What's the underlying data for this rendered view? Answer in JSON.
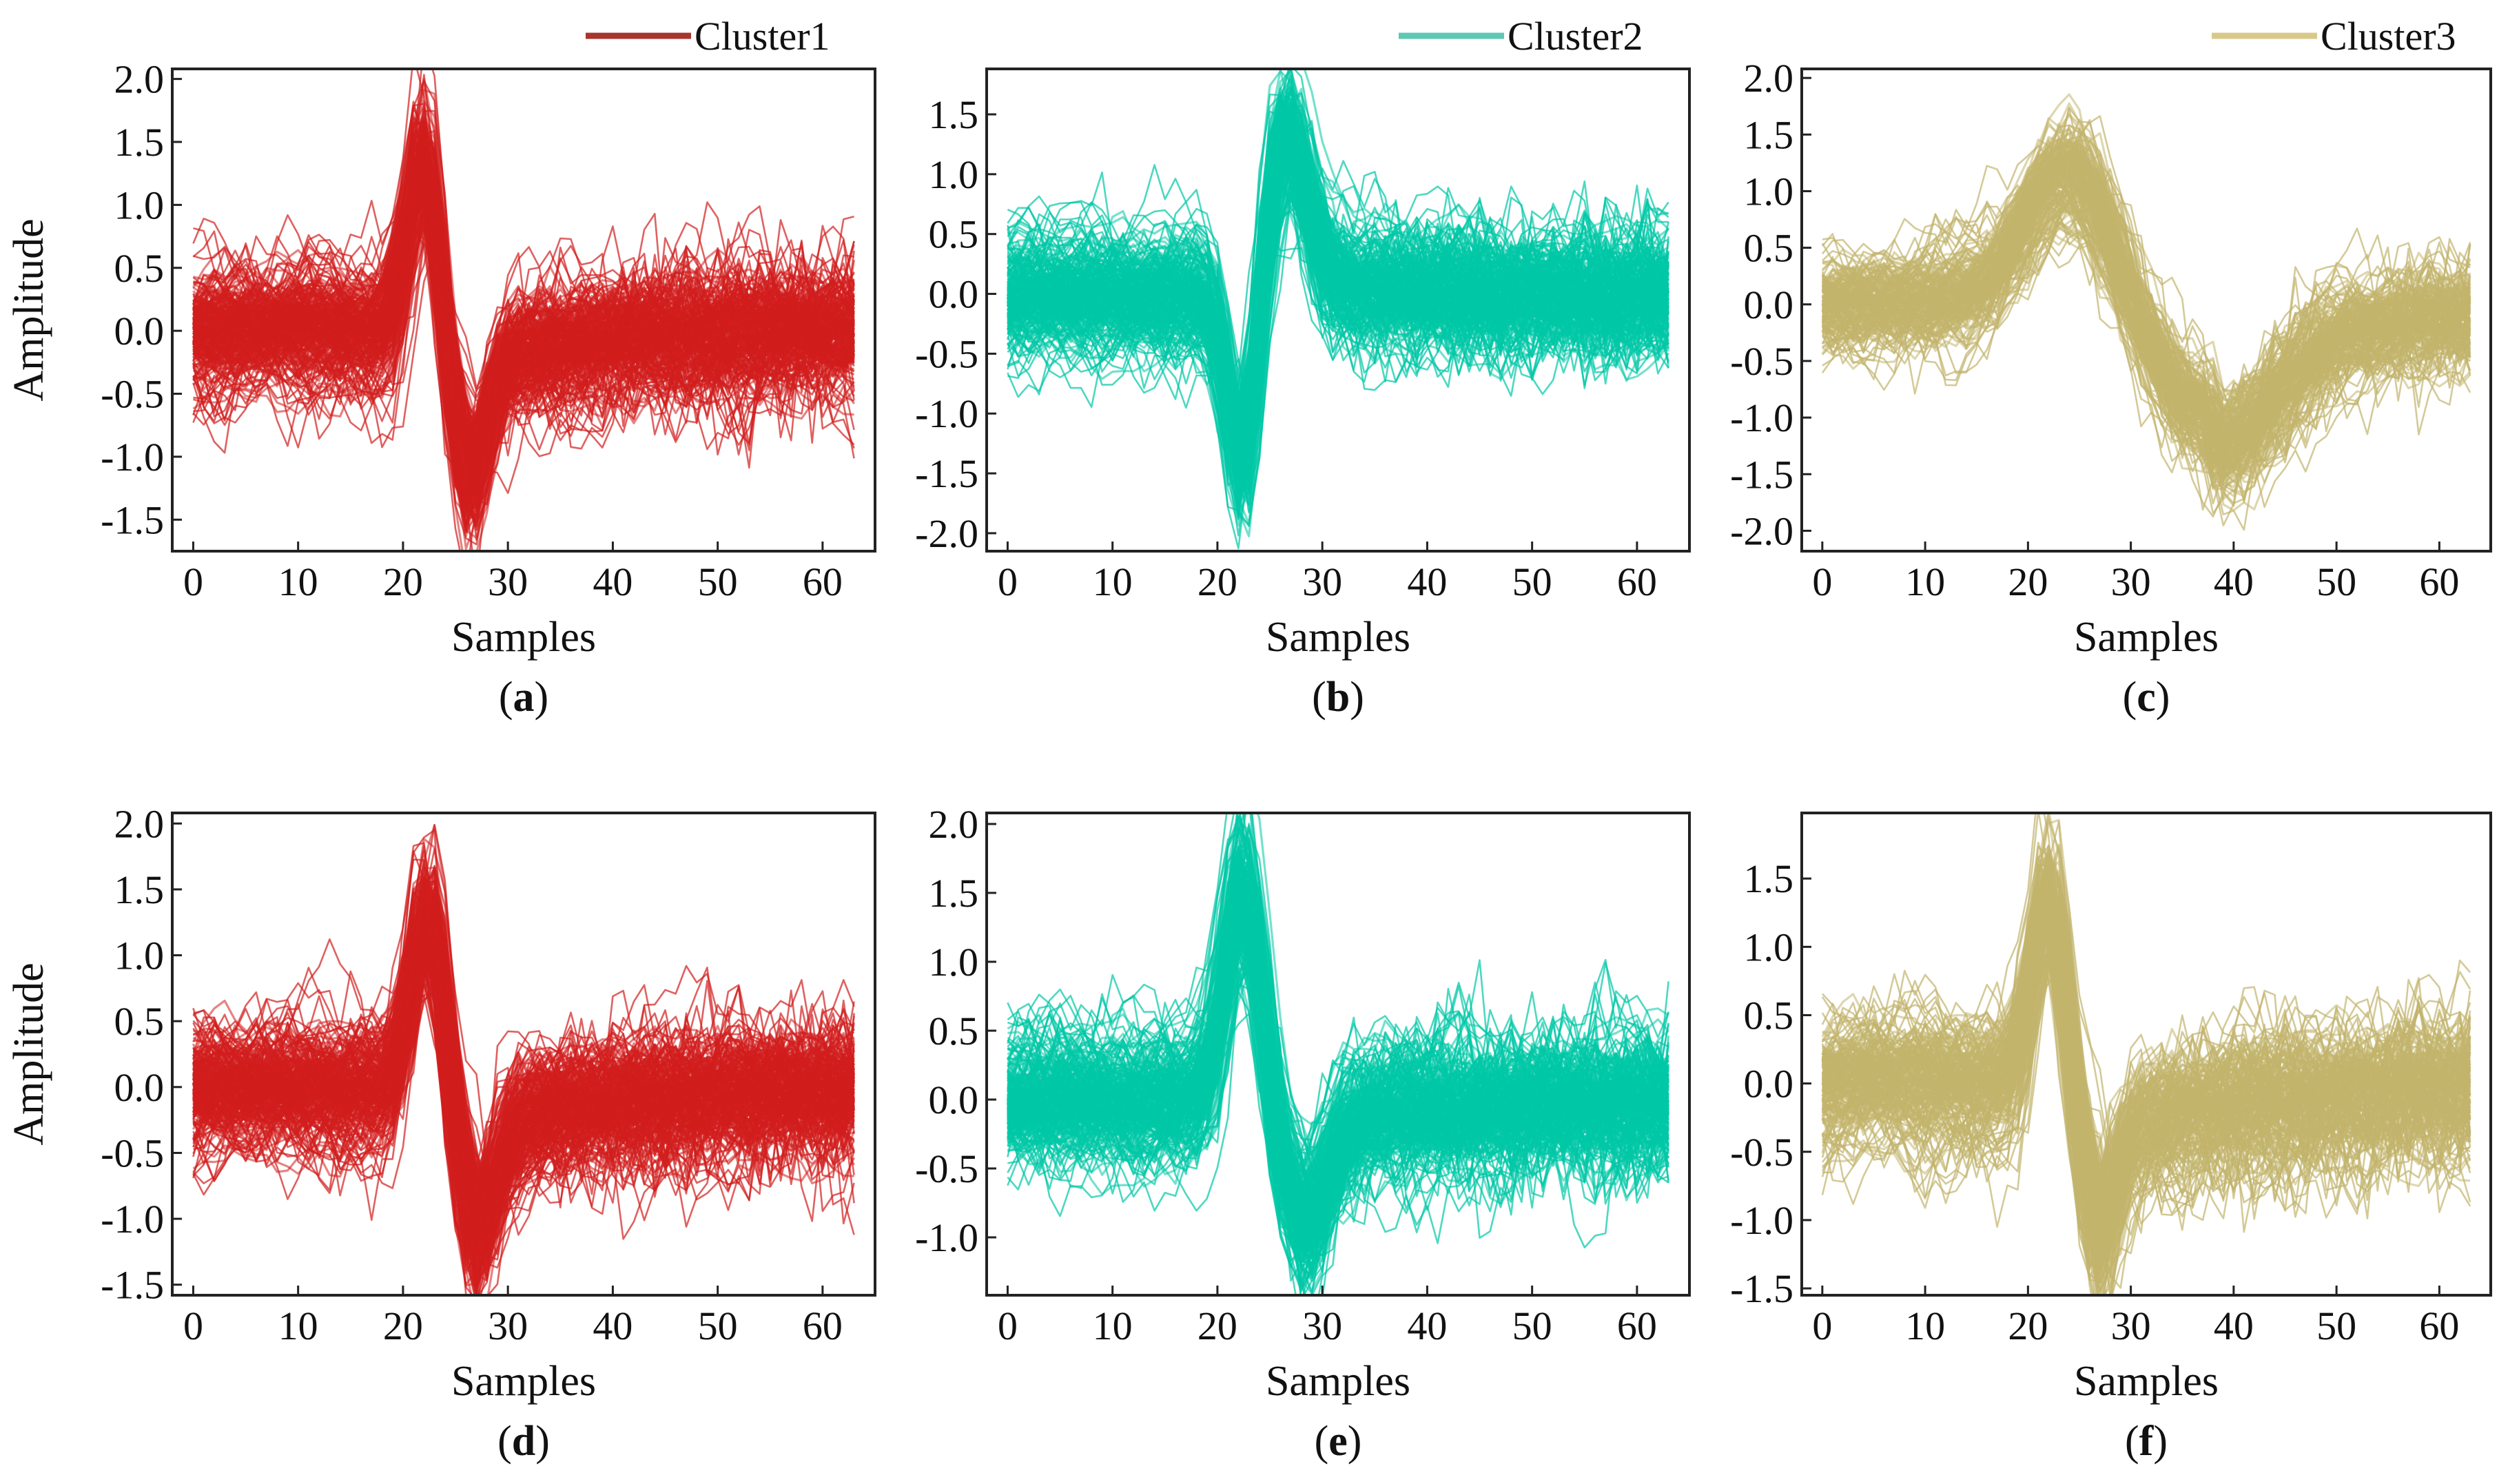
{
  "chart_data": [
    {
      "panel_label": "a",
      "type": "line",
      "cluster": "Cluster1",
      "color": "#d21e1e",
      "xlabel": "Samples",
      "ylabel": "Amplitude",
      "xlim": [
        -2,
        65
      ],
      "ylim": [
        -1.75,
        2.08
      ],
      "xticks": [
        "0",
        "10",
        "20",
        "30",
        "40",
        "50",
        "60"
      ],
      "yticks": [
        "-1.5",
        "-1.0",
        "-0.5",
        "0.0",
        "0.5",
        "1.0",
        "1.5",
        "2.0"
      ],
      "spike": {
        "main_amp": 1.45,
        "main_center": 22,
        "main_width": 1.5,
        "lobe_amp": -1.05,
        "lobe_center": 26,
        "lobe_width": 1.8,
        "tail_amp": -0.25,
        "tail_decay": 12
      },
      "band": 0.3,
      "outlier_amp": 0.9,
      "n_traces": 240
    },
    {
      "panel_label": "b",
      "type": "line",
      "cluster": "Cluster2",
      "color": "#00c8a6",
      "xlabel": "Samples",
      "ylabel": "",
      "xlim": [
        -2,
        65
      ],
      "ylim": [
        -2.15,
        1.88
      ],
      "xticks": [
        "0",
        "10",
        "20",
        "30",
        "40",
        "50",
        "60"
      ],
      "yticks": [
        "-2.0",
        "-1.5",
        "-1.0",
        "-0.5",
        "0.0",
        "0.5",
        "1.0",
        "1.5"
      ],
      "spike": {
        "main_amp": -1.55,
        "main_center": 22.5,
        "main_width": 1.4,
        "lobe_amp": 1.3,
        "lobe_center": 26.5,
        "lobe_width": 2.0,
        "tail_amp": 0.12,
        "tail_decay": 10
      },
      "band": 0.32,
      "outlier_amp": 0.9,
      "n_traces": 240
    },
    {
      "panel_label": "c",
      "type": "line",
      "cluster": "Cluster3",
      "color": "#c2b46c",
      "xlabel": "Samples",
      "ylabel": "",
      "xlim": [
        -2,
        65
      ],
      "ylim": [
        -2.18,
        2.08
      ],
      "xticks": [
        "0",
        "10",
        "20",
        "30",
        "40",
        "50",
        "60"
      ],
      "yticks": [
        "-2.0",
        "-1.5",
        "-1.0",
        "-0.5",
        "0.0",
        "0.5",
        "1.0",
        "1.5",
        "2.0"
      ],
      "spike": {
        "main_amp": 1.25,
        "main_center": 24,
        "main_width": 4.2,
        "lobe_amp": -1.0,
        "lobe_center": 38,
        "lobe_width": 6,
        "tail_amp": -0.3,
        "tail_decay": 30
      },
      "band": 0.3,
      "outlier_amp": 0.8,
      "n_traces": 180
    },
    {
      "panel_label": "d",
      "type": "line",
      "cluster": "Cluster1",
      "color": "#d21e1e",
      "xlabel": "Samples",
      "ylabel": "Amplitude",
      "xlim": [
        -2,
        65
      ],
      "ylim": [
        -1.58,
        2.08
      ],
      "xticks": [
        "0",
        "10",
        "20",
        "30",
        "40",
        "50",
        "60"
      ],
      "yticks": [
        "-1.5",
        "-1.0",
        "-0.5",
        "0.0",
        "0.5",
        "1.0",
        "1.5",
        "2.0"
      ],
      "spike": {
        "main_amp": 1.45,
        "main_center": 22.5,
        "main_width": 1.6,
        "lobe_amp": -0.9,
        "lobe_center": 26.5,
        "lobe_width": 2.0,
        "tail_amp": -0.3,
        "tail_decay": 14
      },
      "band": 0.3,
      "outlier_amp": 0.85,
      "n_traces": 240
    },
    {
      "panel_label": "e",
      "type": "line",
      "cluster": "Cluster2",
      "color": "#00c8a6",
      "xlabel": "Samples",
      "ylabel": "",
      "xlim": [
        -2,
        65
      ],
      "ylim": [
        -1.42,
        2.08
      ],
      "xticks": [
        "0",
        "10",
        "20",
        "30",
        "40",
        "50",
        "60"
      ],
      "yticks": [
        "-1.0",
        "-0.5",
        "0.0",
        "0.5",
        "1.0",
        "1.5",
        "2.0"
      ],
      "spike": {
        "main_amp": 1.55,
        "main_center": 22.5,
        "main_width": 1.7,
        "lobe_amp": -0.75,
        "lobe_center": 28,
        "lobe_width": 2.2,
        "tail_amp": -0.2,
        "tail_decay": 14
      },
      "band": 0.3,
      "outlier_amp": 0.85,
      "n_traces": 240
    },
    {
      "panel_label": "f",
      "type": "line",
      "cluster": "Cluster3",
      "color": "#c2b46c",
      "xlabel": "Samples",
      "ylabel": "",
      "xlim": [
        -2,
        65
      ],
      "ylim": [
        -1.55,
        1.98
      ],
      "xticks": [
        "0",
        "10",
        "20",
        "30",
        "40",
        "50",
        "60"
      ],
      "yticks": [
        "-1.5",
        "-1.0",
        "-0.5",
        "0.0",
        "0.5",
        "1.0",
        "1.5"
      ],
      "spike": {
        "main_amp": 1.4,
        "main_center": 22,
        "main_width": 1.6,
        "lobe_amp": -0.85,
        "lobe_center": 26.5,
        "lobe_width": 1.8,
        "tail_amp": -0.35,
        "tail_decay": 20
      },
      "band": 0.3,
      "outlier_amp": 0.85,
      "n_traces": 200
    }
  ],
  "legend": [
    {
      "label": "Cluster1",
      "color": "#a8342e"
    },
    {
      "label": "Cluster2",
      "color": "#5ec8b4"
    },
    {
      "label": "Cluster3",
      "color": "#d8c98a"
    }
  ]
}
